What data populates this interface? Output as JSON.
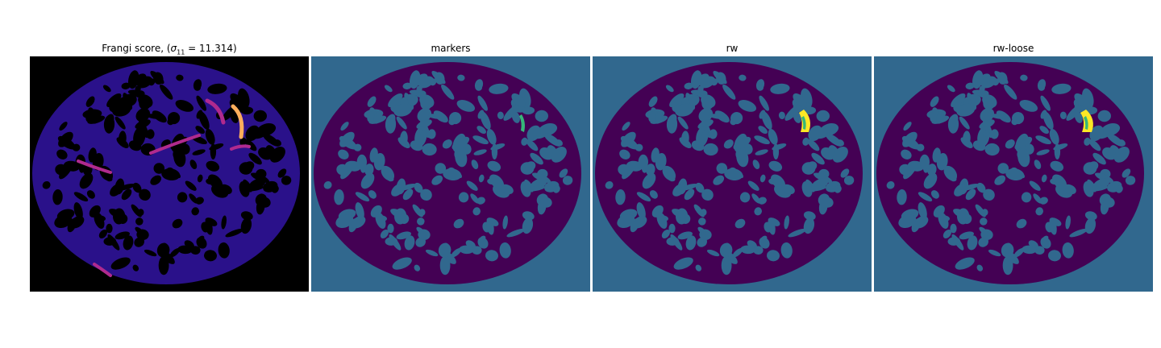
{
  "figure": {
    "panels": [
      {
        "title_prefix": "Frangi score, (",
        "title_symbol": "σ",
        "title_sub": "11",
        "title_suffix": " = 11.314)",
        "colormap": "magma"
      },
      {
        "title": "markers",
        "colormap": "viridis"
      },
      {
        "title": "rw",
        "colormap": "viridis"
      },
      {
        "title": "rw-loose",
        "colormap": "viridis"
      }
    ],
    "colors": {
      "frangi_background": "#000000",
      "frangi_vessels": "#2a118a",
      "frangi_bright": "#b02a8e",
      "frangi_hot": "#fcae5c",
      "seg_background": "#31688e",
      "seg_pattern": "#440154",
      "marker_green": "#35b779",
      "region_yellow": "#fde725"
    }
  }
}
